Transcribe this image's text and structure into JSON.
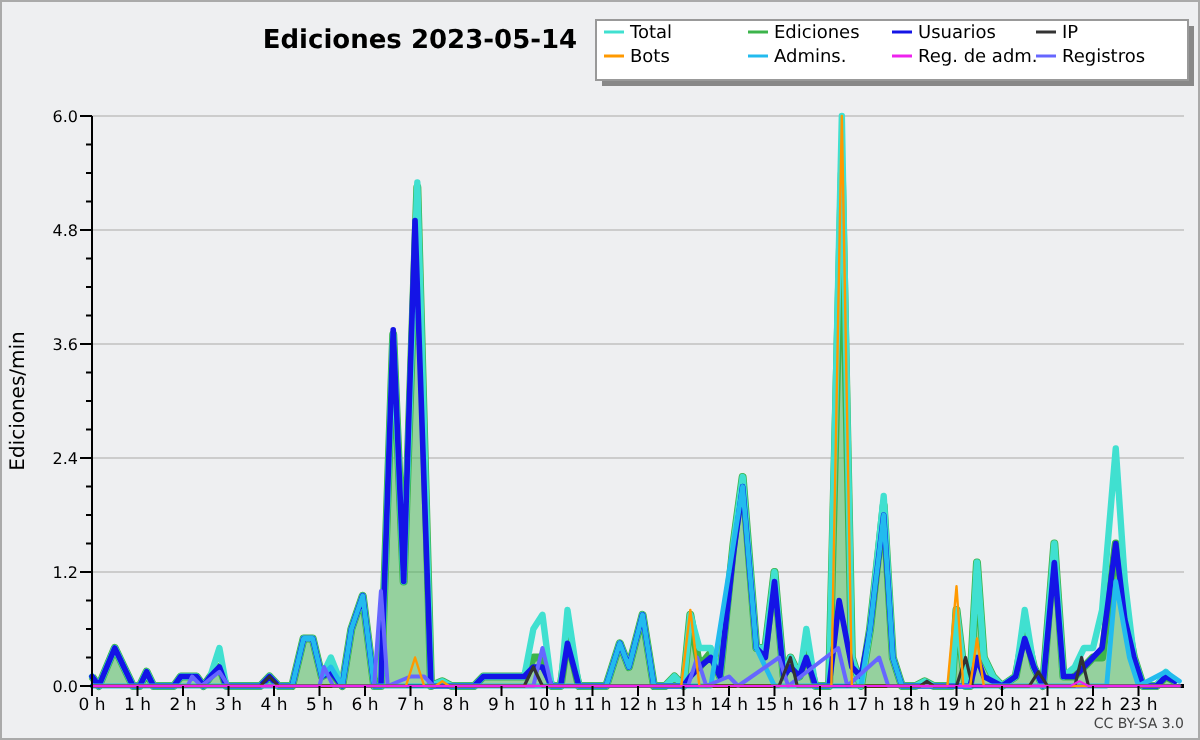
{
  "chart_data": {
    "type": "line",
    "title": "Ediciones  2023-05-14",
    "ylabel": "Ediciones/min",
    "xlim": [
      0,
      24
    ],
    "xticks": [
      {
        "value": 0,
        "label": "0 h"
      },
      {
        "value": 1,
        "label": "1 h"
      },
      {
        "value": 2,
        "label": "2 h"
      },
      {
        "value": 3,
        "label": "3 h"
      },
      {
        "value": 4,
        "label": "4 h"
      },
      {
        "value": 5,
        "label": "5 h"
      },
      {
        "value": 6,
        "label": "6 h"
      },
      {
        "value": 7,
        "label": "7 h"
      },
      {
        "value": 8,
        "label": "8 h"
      },
      {
        "value": 9,
        "label": "9 h"
      },
      {
        "value": 10,
        "label": "10 h"
      },
      {
        "value": 11,
        "label": "11 h"
      },
      {
        "value": 12,
        "label": "12 h"
      },
      {
        "value": 13,
        "label": "13 h"
      },
      {
        "value": 14,
        "label": "14 h"
      },
      {
        "value": 15,
        "label": "15 h"
      },
      {
        "value": 16,
        "label": "16 h"
      },
      {
        "value": 17,
        "label": "17 h"
      },
      {
        "value": 18,
        "label": "18 h"
      },
      {
        "value": 19,
        "label": "19 h"
      },
      {
        "value": 20,
        "label": "20 h"
      },
      {
        "value": 21,
        "label": "21 h"
      },
      {
        "value": 22,
        "label": "22 h"
      },
      {
        "value": 23,
        "label": "23 h"
      }
    ],
    "ylim": [
      0,
      6
    ],
    "yticks": [
      {
        "value": 0,
        "label": "0.0"
      },
      {
        "value": 0.3,
        "label": null
      },
      {
        "value": 0.6,
        "label": null
      },
      {
        "value": 0.9,
        "label": null
      },
      {
        "value": 1.2,
        "label": "1.2"
      },
      {
        "value": 1.5,
        "label": null
      },
      {
        "value": 1.8,
        "label": null
      },
      {
        "value": 2.1,
        "label": null
      },
      {
        "value": 2.4,
        "label": "2.4"
      },
      {
        "value": 2.7,
        "label": null
      },
      {
        "value": 3.0,
        "label": null
      },
      {
        "value": 3.3,
        "label": null
      },
      {
        "value": 3.6,
        "label": "3.6"
      },
      {
        "value": 3.9,
        "label": null
      },
      {
        "value": 4.2,
        "label": null
      },
      {
        "value": 4.5,
        "label": null
      },
      {
        "value": 4.8,
        "label": "4.8"
      },
      {
        "value": 5.1,
        "label": null
      },
      {
        "value": 5.4,
        "label": null
      },
      {
        "value": 5.7,
        "label": null
      },
      {
        "value": 6.0,
        "label": "6.0"
      }
    ],
    "grid": "y",
    "legend": "top right",
    "marker": "none",
    "line_style": "solid",
    "annotations": [
      "CC BY-SA 3.0"
    ],
    "series": [
      {
        "name": "Total",
        "color": "#40e0d0",
        "x": [
          0,
          0.15,
          0.5,
          0.9,
          1.05,
          1.2,
          1.35,
          1.8,
          1.95,
          2.3,
          2.45,
          2.6,
          2.8,
          2.95,
          3.7,
          3.9,
          4.1,
          4.4,
          4.65,
          4.85,
          5.05,
          5.25,
          5.5,
          5.7,
          5.95,
          6.2,
          6.35,
          6.62,
          6.85,
          7.15,
          7.45,
          7.7,
          7.9,
          8.4,
          8.6,
          9.5,
          9.7,
          9.9,
          10.1,
          10.3,
          10.45,
          10.7,
          11.3,
          11.6,
          11.8,
          12.1,
          12.35,
          12.6,
          12.8,
          13.0,
          13.15,
          13.35,
          13.6,
          13.8,
          14.1,
          14.3,
          14.6,
          14.8,
          15.0,
          15.2,
          15.35,
          15.55,
          15.7,
          15.9,
          16.2,
          16.48,
          16.7,
          16.9,
          17.1,
          17.4,
          17.6,
          17.8,
          18.1,
          18.3,
          18.5,
          18.9,
          19.0,
          19.2,
          19.3,
          19.45,
          19.6,
          19.8,
          20.0,
          20.3,
          20.5,
          20.7,
          20.9,
          21.15,
          21.35,
          21.6,
          21.8,
          22.0,
          22.2,
          22.5,
          22.7,
          22.9,
          23.1,
          23.4,
          23.6,
          23.8
        ],
        "values": [
          0.1,
          0,
          0.4,
          0,
          0,
          0.15,
          0,
          0,
          0.1,
          0.1,
          0,
          0.1,
          0.4,
          0,
          0,
          0.1,
          0,
          0,
          0.5,
          0.5,
          0.1,
          0.3,
          0,
          0.6,
          0.95,
          0,
          0,
          3.7,
          1.1,
          5.3,
          0,
          0.05,
          0,
          0,
          0.1,
          0.1,
          0.6,
          0.75,
          0,
          0,
          0.8,
          0,
          0,
          0.45,
          0.2,
          0.75,
          0,
          0,
          0.1,
          0,
          0.75,
          0.4,
          0.4,
          0.1,
          1.5,
          2.2,
          0.4,
          0.4,
          1.2,
          0.1,
          0.3,
          0.1,
          0.6,
          0,
          0,
          6.0,
          0.3,
          0,
          0.6,
          2.0,
          0.3,
          0,
          0,
          0.05,
          0,
          0,
          0.8,
          0,
          0,
          1.3,
          0.3,
          0.1,
          0,
          0.1,
          0.8,
          0.2,
          0,
          1.5,
          0.1,
          0.2,
          0.4,
          0.4,
          0.8,
          2.5,
          1.1,
          0.3,
          0,
          0,
          0.15,
          0.05
        ]
      },
      {
        "name": "Ediciones",
        "type": "area",
        "color": "#3cb44b",
        "x": [
          0,
          0.15,
          0.5,
          0.9,
          1.05,
          1.2,
          1.35,
          1.8,
          1.95,
          2.3,
          2.45,
          2.6,
          2.8,
          2.95,
          3.7,
          3.9,
          4.1,
          4.4,
          4.65,
          4.85,
          5.05,
          5.25,
          5.5,
          5.7,
          5.95,
          6.2,
          6.35,
          6.62,
          6.85,
          7.15,
          7.45,
          7.7,
          7.9,
          8.4,
          8.6,
          9.5,
          9.7,
          9.9,
          10.1,
          10.3,
          10.45,
          10.7,
          11.3,
          11.6,
          11.8,
          12.1,
          12.35,
          12.6,
          12.8,
          13.0,
          13.15,
          13.35,
          13.6,
          13.8,
          14.1,
          14.3,
          14.6,
          14.8,
          15.0,
          15.2,
          15.35,
          15.55,
          15.7,
          15.9,
          16.2,
          16.48,
          16.7,
          16.9,
          17.1,
          17.4,
          17.6,
          17.8,
          18.1,
          18.3,
          18.5,
          18.9,
          19.0,
          19.2,
          19.3,
          19.45,
          19.6,
          19.8,
          20.0,
          20.3,
          20.5,
          20.7,
          20.9,
          21.15,
          21.35,
          21.6,
          21.8,
          22.0,
          22.2,
          22.5,
          22.7,
          22.9,
          23.1,
          23.4,
          23.6,
          23.8
        ],
        "values": [
          0.1,
          0,
          0.4,
          0,
          0,
          0.15,
          0,
          0,
          0.1,
          0.1,
          0,
          0.1,
          0.2,
          0,
          0,
          0.1,
          0,
          0,
          0.5,
          0.5,
          0.1,
          0.15,
          0,
          0.6,
          0.95,
          0,
          0,
          3.7,
          1.1,
          5.25,
          0,
          0.05,
          0,
          0,
          0.1,
          0.1,
          0.3,
          0.3,
          0,
          0,
          0.5,
          0,
          0,
          0.45,
          0.2,
          0.75,
          0,
          0,
          0.1,
          0,
          0.75,
          0.2,
          0.35,
          0.1,
          1.5,
          2.2,
          0.4,
          0.4,
          1.2,
          0.1,
          0.3,
          0.1,
          0.35,
          0,
          0,
          5.4,
          0.3,
          0,
          0.6,
          1.9,
          0.3,
          0,
          0,
          0.05,
          0,
          0,
          0.8,
          0,
          0,
          1.3,
          0.3,
          0.1,
          0,
          0.1,
          0.6,
          0.2,
          0,
          1.5,
          0.1,
          0.1,
          0.2,
          0.3,
          0.3,
          1.5,
          0.8,
          0.3,
          0,
          0,
          0.1,
          0.05
        ]
      },
      {
        "name": "Usuarios",
        "color": "#1414e6",
        "x": [
          0,
          0.15,
          0.5,
          0.9,
          1.05,
          1.2,
          1.35,
          1.8,
          1.95,
          2.3,
          2.45,
          2.6,
          2.8,
          2.95,
          3.7,
          3.9,
          4.1,
          4.4,
          4.65,
          4.85,
          5.05,
          5.25,
          5.5,
          5.7,
          5.95,
          6.2,
          6.35,
          6.62,
          6.85,
          7.1,
          7.45,
          8.4,
          8.6,
          9.5,
          9.7,
          9.9,
          10.1,
          10.3,
          10.45,
          10.7,
          11.3,
          11.6,
          11.8,
          12.1,
          12.35,
          13.0,
          13.15,
          13.35,
          13.6,
          13.8,
          14.1,
          14.3,
          14.6,
          14.8,
          15.0,
          15.2,
          15.35,
          15.55,
          15.7,
          15.9,
          16.2,
          16.42,
          16.7,
          16.9,
          17.1,
          17.4,
          17.6,
          17.8,
          19.3,
          19.45,
          19.6,
          20.0,
          20.3,
          20.5,
          20.7,
          20.9,
          21.15,
          21.35,
          21.6,
          21.8,
          22.0,
          22.2,
          22.5,
          22.7,
          22.9,
          23.1,
          23.4,
          23.6,
          23.8
        ],
        "values": [
          0.1,
          0,
          0.4,
          0,
          0,
          0.15,
          0,
          0,
          0.1,
          0.1,
          0,
          0.1,
          0.2,
          0,
          0,
          0.1,
          0,
          0,
          0.5,
          0.5,
          0.1,
          0.15,
          0,
          0.6,
          0.95,
          0,
          0,
          3.75,
          1.1,
          4.9,
          0,
          0,
          0.1,
          0.1,
          0.2,
          0.2,
          0,
          0,
          0.45,
          0,
          0,
          0.45,
          0.2,
          0.75,
          0,
          0,
          0.1,
          0.2,
          0.3,
          0.1,
          1.4,
          2.1,
          0.4,
          0.3,
          1.1,
          0.1,
          0.2,
          0.1,
          0.3,
          0,
          0,
          0.9,
          0.2,
          0.1,
          0.6,
          1.8,
          0.3,
          0,
          0,
          0.3,
          0.1,
          0,
          0.1,
          0.5,
          0.2,
          0,
          1.3,
          0.1,
          0.1,
          0.2,
          0.3,
          0.4,
          1.5,
          0.7,
          0.3,
          0,
          0,
          0.1,
          0.05
        ]
      },
      {
        "name": "IP",
        "color": "#333333",
        "x": [
          0,
          3.7,
          3.9,
          4.1,
          9.5,
          9.7,
          9.9,
          15.1,
          15.35,
          15.5,
          18.2,
          18.35,
          18.5,
          19.0,
          19.2,
          19.35,
          20.6,
          20.8,
          21.0,
          21.6,
          21.75,
          21.9,
          23.9
        ],
        "values": [
          0,
          0,
          0.1,
          0,
          0,
          0.2,
          0,
          0,
          0.3,
          0,
          0,
          0.05,
          0,
          0,
          0.3,
          0,
          0,
          0.15,
          0,
          0,
          0.3,
          0,
          0
        ]
      },
      {
        "name": "Bots",
        "color": "#ff9900",
        "x": [
          0,
          6.9,
          7.1,
          7.3,
          7.55,
          7.7,
          7.85,
          12.95,
          13.15,
          13.35,
          16.25,
          16.48,
          16.7,
          18.8,
          19.0,
          19.15,
          19.3,
          19.45,
          19.6,
          23.9
        ],
        "values": [
          0,
          0,
          0.3,
          0,
          0,
          0.05,
          0,
          0,
          0.8,
          0,
          0,
          6.0,
          0,
          0,
          1.05,
          0,
          0,
          0.5,
          0,
          0
        ]
      },
      {
        "name": "Admins.",
        "color": "#22bbee",
        "x": [
          0,
          4.4,
          4.65,
          4.85,
          5.05,
          5.25,
          5.5,
          5.7,
          5.95,
          6.2,
          11.3,
          11.6,
          11.8,
          12.1,
          12.35,
          13.6,
          14.1,
          14.3,
          14.6,
          15.0,
          16.9,
          17.1,
          17.4,
          17.6,
          17.8,
          22.3,
          22.5,
          22.8,
          23.0,
          23.6,
          23.9
        ],
        "values": [
          0,
          0,
          0.5,
          0.5,
          0.1,
          0.2,
          0,
          0.6,
          0.95,
          0,
          0,
          0.45,
          0.2,
          0.75,
          0,
          0,
          1.5,
          2.1,
          0.4,
          0,
          0,
          0.6,
          1.8,
          0.3,
          0,
          0,
          1.1,
          0.3,
          0,
          0.15,
          0.05
        ]
      },
      {
        "name": "Reg. de adm.",
        "color": "#ee22ee",
        "x": [
          0,
          21.5,
          21.7,
          21.9,
          23.9
        ],
        "values": [
          0,
          0,
          0.05,
          0,
          0
        ]
      },
      {
        "name": "Registros",
        "color": "#6666ff",
        "x": [
          0,
          2.1,
          2.2,
          2.4,
          2.8,
          3.0,
          5.0,
          5.1,
          5.3,
          6.2,
          6.35,
          6.5,
          7.0,
          7.3,
          7.5,
          9.7,
          9.9,
          10.1,
          13.1,
          13.3,
          13.5,
          14.0,
          14.2,
          15.1,
          15.3,
          16.4,
          16.6,
          17.3,
          17.5,
          23.9
        ],
        "values": [
          0,
          0,
          0.1,
          0,
          0.15,
          0,
          0,
          0.2,
          0,
          0,
          1.0,
          0,
          0.1,
          0.1,
          0,
          0,
          0.4,
          0,
          0,
          0.3,
          0,
          0.1,
          0,
          0.3,
          0,
          0.4,
          0,
          0.3,
          0,
          0
        ]
      }
    ]
  }
}
